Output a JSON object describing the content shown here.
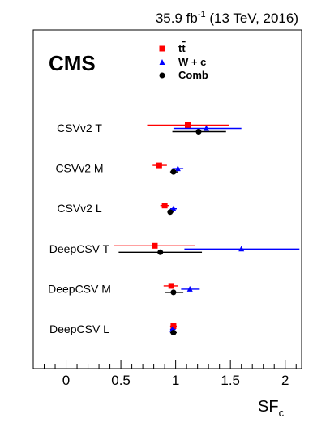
{
  "chart_data": {
    "type": "scatter",
    "experiment": "CMS",
    "lumi_label": "35.9 fb",
    "lumi_sup": "-1",
    "lumi_suffix": " (13 TeV, 2016)",
    "xlabel": "SF",
    "xlabel_sub": "c",
    "xlim": [
      -0.3,
      2.15
    ],
    "xticks": [
      0,
      0.5,
      1,
      1.5,
      2
    ],
    "xtick_labels": [
      "0",
      "0.5",
      "1",
      "1.5",
      "2"
    ],
    "legend_position": "top-center",
    "categories": [
      "CSVv2 T",
      "CSVv2 M",
      "CSVv2 L",
      "DeepCSV T",
      "DeepCSV M",
      "DeepCSV L"
    ],
    "series": [
      {
        "name": "tt̅",
        "name_base": "t",
        "name_bar": "t",
        "marker": "square",
        "color": "#ff0000",
        "points": [
          {
            "category": "CSVv2 T",
            "value": 1.11,
            "lo": 0.74,
            "hi": 1.49
          },
          {
            "category": "CSVv2 M",
            "value": 0.85,
            "lo": 0.79,
            "hi": 0.92
          },
          {
            "category": "CSVv2 L",
            "value": 0.9,
            "lo": 0.86,
            "hi": 0.94
          },
          {
            "category": "DeepCSV T",
            "value": 0.81,
            "lo": 0.44,
            "hi": 1.18
          },
          {
            "category": "DeepCSV M",
            "value": 0.96,
            "lo": 0.89,
            "hi": 1.02
          },
          {
            "category": "DeepCSV L",
            "value": 0.98,
            "lo": 0.95,
            "hi": 1.01
          }
        ]
      },
      {
        "name": "W + c",
        "marker": "triangle",
        "color": "#0000ff",
        "points": [
          {
            "category": "CSVv2 T",
            "value": 1.28,
            "lo": 0.98,
            "hi": 1.6
          },
          {
            "category": "CSVv2 M",
            "value": 1.02,
            "lo": 0.97,
            "hi": 1.07
          },
          {
            "category": "CSVv2 L",
            "value": 0.98,
            "lo": 0.95,
            "hi": 1.01
          },
          {
            "category": "DeepCSV T",
            "value": 1.6,
            "lo": 1.08,
            "hi": 2.13
          },
          {
            "category": "DeepCSV M",
            "value": 1.13,
            "lo": 1.05,
            "hi": 1.22
          },
          {
            "category": "DeepCSV L",
            "value": 0.97,
            "lo": 0.95,
            "hi": 1.0
          }
        ]
      },
      {
        "name": "Comb",
        "marker": "circle",
        "color": "#000000",
        "points": [
          {
            "category": "CSVv2 T",
            "value": 1.21,
            "lo": 0.97,
            "hi": 1.46
          },
          {
            "category": "CSVv2 M",
            "value": 0.98,
            "lo": 0.95,
            "hi": 1.02
          },
          {
            "category": "CSVv2 L",
            "value": 0.95,
            "lo": 0.93,
            "hi": 0.98
          },
          {
            "category": "DeepCSV T",
            "value": 0.86,
            "lo": 0.48,
            "hi": 1.24
          },
          {
            "category": "DeepCSV M",
            "value": 0.98,
            "lo": 0.9,
            "hi": 1.07
          },
          {
            "category": "DeepCSV L",
            "value": 0.98,
            "lo": 0.95,
            "hi": 1.01
          }
        ]
      }
    ]
  }
}
